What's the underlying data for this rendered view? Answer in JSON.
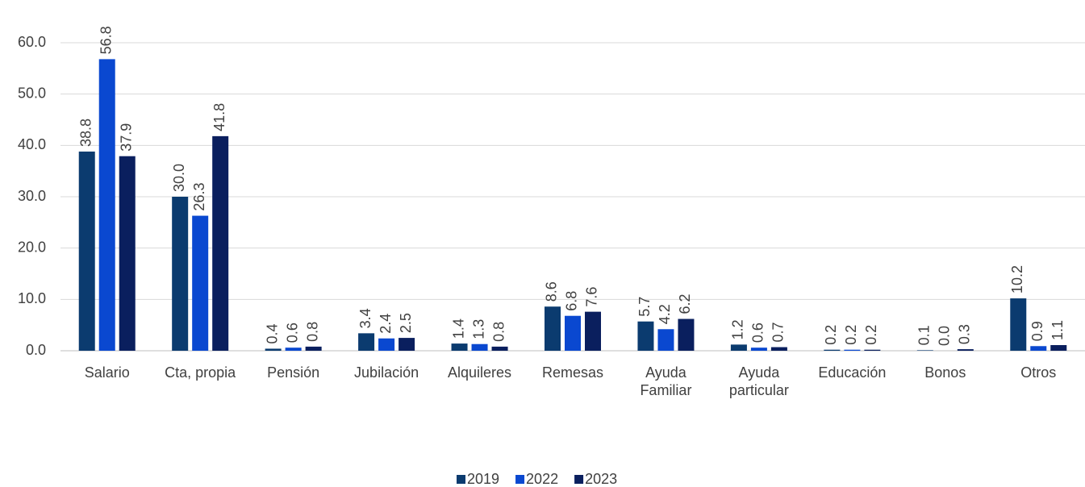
{
  "chart_data": {
    "type": "bar",
    "categories": [
      "Salario",
      "Cta, propia",
      "Pensión",
      "Jubilación",
      "Alquileres",
      "Remesas",
      "Ayuda Familiar",
      "Ayuda particular",
      "Educación",
      "Bonos",
      "Otros"
    ],
    "series": [
      {
        "name": "2019",
        "color": "#0b3b6f",
        "values": [
          38.8,
          30.0,
          0.4,
          3.4,
          1.4,
          8.6,
          5.7,
          1.2,
          0.2,
          0.1,
          10.2
        ],
        "value_labels": [
          "38.8",
          "30.0",
          "0.4",
          "3.4",
          "1.4",
          "8.6",
          "5.7",
          "1.2",
          "0.2",
          "0.1",
          "10.2"
        ]
      },
      {
        "name": "2022",
        "color": "#0a48d0",
        "values": [
          56.8,
          26.3,
          0.6,
          2.4,
          1.3,
          6.8,
          4.2,
          0.6,
          0.2,
          0.0,
          0.9
        ],
        "value_labels": [
          "56.8",
          "26.3",
          "0.6",
          "2.4",
          "1.3",
          "6.8",
          "4.2",
          "0.6",
          "0.2",
          "0.0",
          "0.9"
        ]
      },
      {
        "name": "2023",
        "color": "#0a1f5e",
        "values": [
          37.9,
          41.8,
          0.8,
          2.5,
          0.8,
          7.6,
          6.2,
          0.7,
          0.2,
          0.3,
          1.1
        ],
        "value_labels": [
          "37.9",
          "41.8",
          "0.8",
          "2.5",
          "0.8",
          "7.6",
          "6.2",
          "0.7",
          "0.2",
          "0.3",
          "1.1"
        ]
      }
    ],
    "ylim": [
      0,
      60
    ],
    "yticks": [
      {
        "value": 0,
        "label": "0.0"
      },
      {
        "value": 10,
        "label": "10.0"
      },
      {
        "value": 20,
        "label": "20.0"
      },
      {
        "value": 30,
        "label": "30.0"
      },
      {
        "value": 40,
        "label": "40.0"
      },
      {
        "value": 50,
        "label": "50.0"
      },
      {
        "value": 60,
        "label": "60.0"
      }
    ],
    "grid": true,
    "legend": "bottom"
  }
}
